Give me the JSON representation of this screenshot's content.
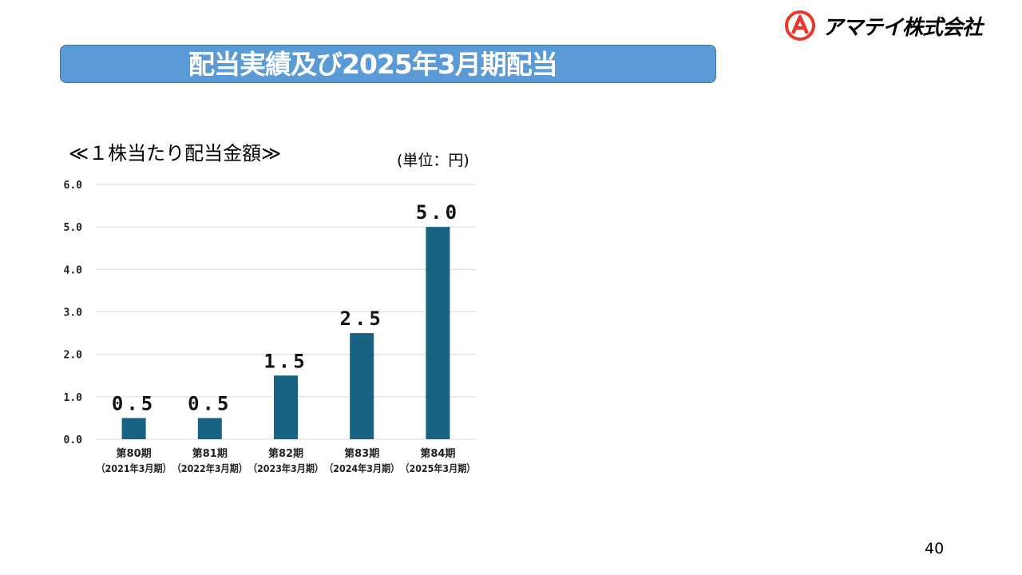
{
  "brand": {
    "logo_icon": "amatei-logo-icon",
    "company_name": "アマテイ株式会社",
    "accent_color": "#e8382d"
  },
  "slide": {
    "title": "配当実績及び2025年3月期配当",
    "page_number": "40"
  },
  "chart_data": {
    "type": "bar",
    "title": "≪１株当たり配当金額≫",
    "unit_label": "(単位：円)",
    "categories": [
      {
        "line1": "第80期",
        "line2": "（2021年3月期）"
      },
      {
        "line1": "第81期",
        "line2": "（2022年3月期）"
      },
      {
        "line1": "第82期",
        "line2": "（2023年3月期）"
      },
      {
        "line1": "第83期",
        "line2": "（2024年3月期）"
      },
      {
        "line1": "第84期",
        "line2": "（2025年3月期）"
      }
    ],
    "values": [
      0.5,
      0.5,
      1.5,
      2.5,
      5.0
    ],
    "data_labels": [
      "0.5",
      "0.5",
      "1.5",
      "2.5",
      "5.0"
    ],
    "y_ticks": [
      "0.0",
      "1.0",
      "2.0",
      "3.0",
      "4.0",
      "5.0",
      "6.0"
    ],
    "ylim": [
      0,
      6
    ],
    "grid": true,
    "bar_color": "#186384",
    "grid_color": "#d9d9d9"
  }
}
